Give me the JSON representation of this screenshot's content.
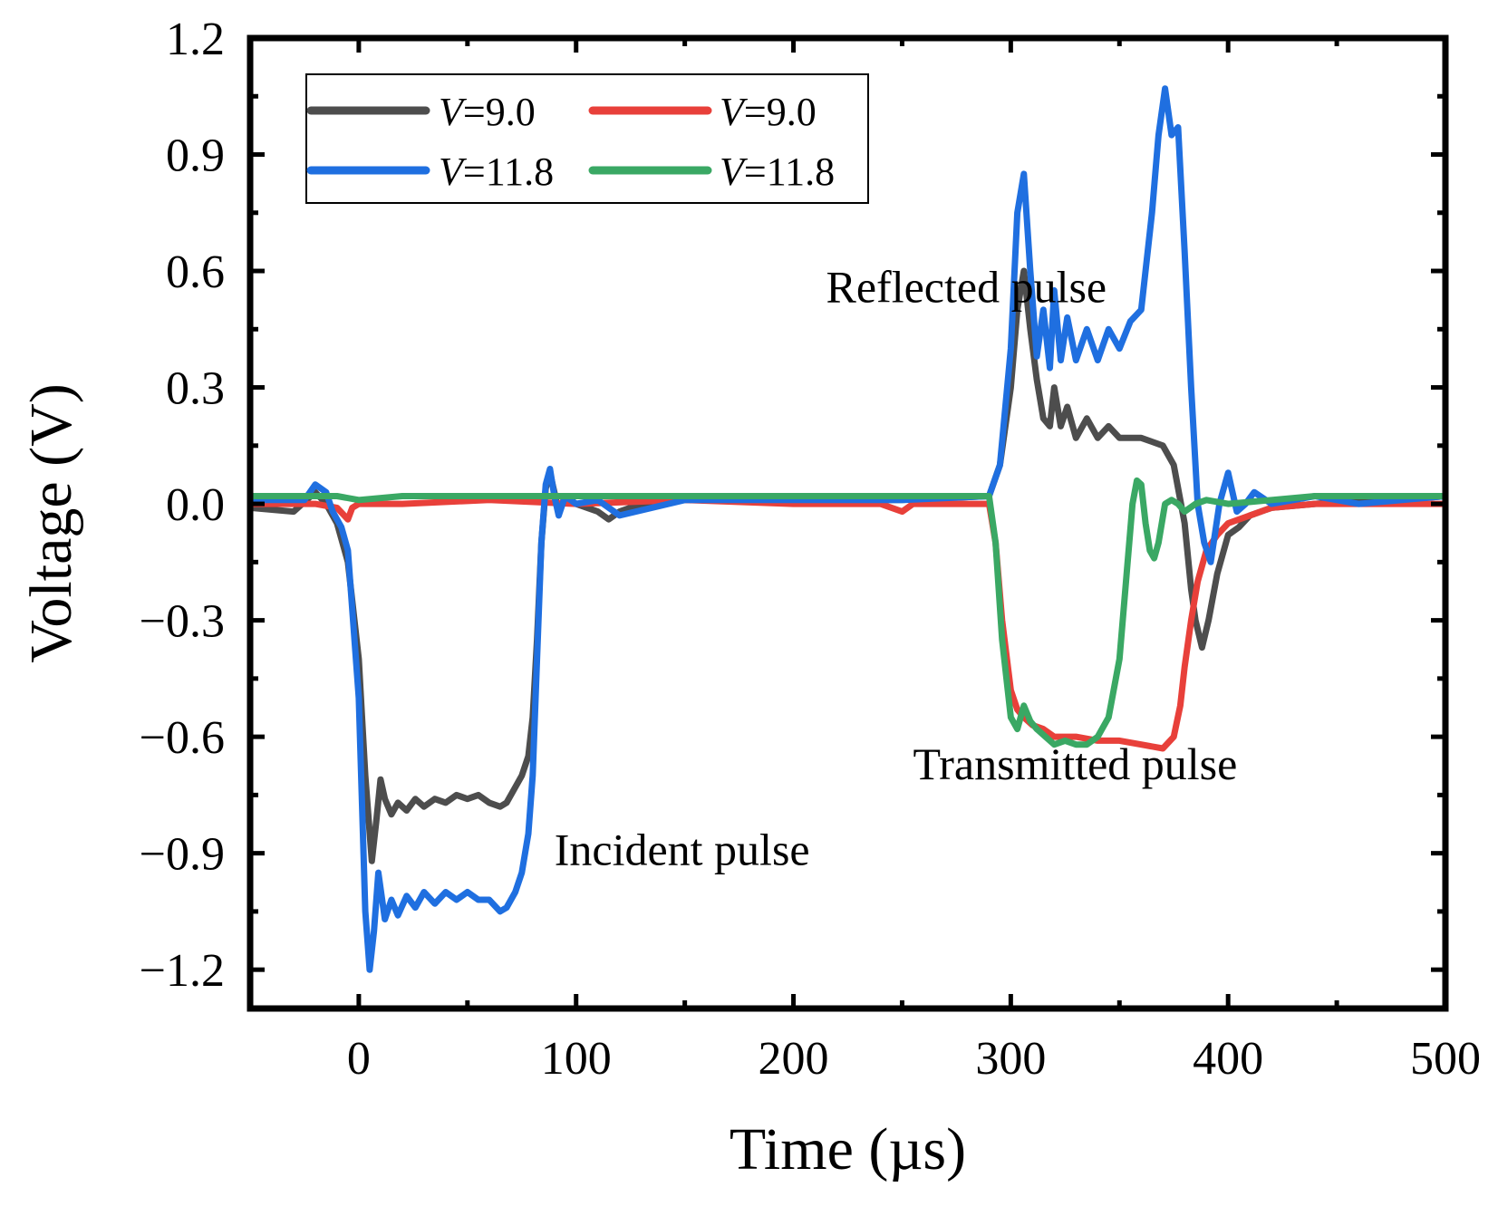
{
  "chart_data": {
    "type": "line",
    "title": "",
    "xlabel": "Time (µs)",
    "ylabel": "Voltage (V)",
    "xlim": [
      -50,
      500
    ],
    "ylim": [
      -1.3,
      1.2
    ],
    "xticks": [
      0,
      100,
      200,
      300,
      400,
      500
    ],
    "xtick_labels": [
      "0",
      "100",
      "200",
      "300",
      "400",
      "500"
    ],
    "yticks": [
      -1.2,
      -0.9,
      -0.6,
      -0.3,
      0.0,
      0.3,
      0.6,
      0.9,
      1.2
    ],
    "ytick_labels": [
      "−1.2",
      "−0.9",
      "−0.6",
      "−0.3",
      "0.0",
      "0.3",
      "0.6",
      "0.9",
      "1.2"
    ],
    "grid": false,
    "legend": {
      "placement": "top-left",
      "columns": 2,
      "italic_prefix": "V",
      "entries": [
        "=9.0",
        "=9.0",
        "=11.8",
        "=11.8"
      ]
    },
    "annotations": [
      {
        "text": "Reflected pulse",
        "x": 215,
        "y": 0.52
      },
      {
        "text": "Incident pulse",
        "x": 90,
        "y": -0.93
      },
      {
        "text": "Transmitted pulse",
        "x": 255,
        "y": -0.71
      }
    ],
    "series": [
      {
        "legend": "V=9.0",
        "color": "#4d4d4d",
        "x": [
          -50,
          -30,
          -20,
          -15,
          -10,
          -5,
          0,
          3,
          6,
          8,
          10,
          12,
          15,
          18,
          22,
          26,
          30,
          35,
          40,
          45,
          50,
          55,
          60,
          65,
          68,
          72,
          75,
          78,
          80,
          82,
          84,
          86,
          88,
          90,
          92,
          95,
          100,
          110,
          115,
          120,
          130,
          150,
          180,
          200,
          250,
          290,
          295,
          300,
          303,
          306,
          309,
          312,
          315,
          318,
          320,
          323,
          326,
          330,
          335,
          340,
          345,
          350,
          360,
          365,
          370,
          375,
          380,
          383,
          385,
          388,
          391,
          395,
          400,
          405,
          410,
          420,
          440,
          460,
          480,
          500
        ],
        "y": [
          -0.01,
          -0.02,
          0.03,
          0.0,
          -0.05,
          -0.15,
          -0.4,
          -0.7,
          -0.92,
          -0.82,
          -0.71,
          -0.76,
          -0.8,
          -0.77,
          -0.79,
          -0.76,
          -0.78,
          -0.76,
          -0.77,
          -0.75,
          -0.76,
          -0.75,
          -0.77,
          -0.78,
          -0.77,
          -0.73,
          -0.7,
          -0.65,
          -0.55,
          -0.35,
          -0.1,
          0.04,
          0.08,
          0.03,
          -0.02,
          0.02,
          0.0,
          -0.02,
          -0.04,
          -0.02,
          0.0,
          0.01,
          0.01,
          0.01,
          0.01,
          0.02,
          0.1,
          0.3,
          0.5,
          0.6,
          0.45,
          0.32,
          0.22,
          0.2,
          0.3,
          0.2,
          0.25,
          0.17,
          0.22,
          0.17,
          0.2,
          0.17,
          0.17,
          0.16,
          0.15,
          0.1,
          -0.05,
          -0.22,
          -0.3,
          -0.37,
          -0.3,
          -0.18,
          -0.08,
          -0.06,
          -0.03,
          -0.01,
          0.0,
          0.01,
          0.01,
          0.02
        ]
      },
      {
        "legend": "V=9.0",
        "color": "#e8403a",
        "x": [
          -50,
          -20,
          -10,
          -5,
          -3,
          0,
          20,
          60,
          100,
          150,
          200,
          240,
          250,
          255,
          270,
          290,
          293,
          296,
          300,
          303,
          306,
          310,
          315,
          320,
          330,
          340,
          350,
          360,
          370,
          375,
          378,
          380,
          383,
          386,
          390,
          395,
          400,
          410,
          420,
          440,
          460,
          480,
          500
        ],
        "y": [
          0.0,
          0.0,
          -0.01,
          -0.04,
          -0.01,
          0.0,
          0.0,
          0.01,
          0.0,
          0.01,
          0.0,
          0.0,
          -0.02,
          0.0,
          0.0,
          0.0,
          -0.1,
          -0.3,
          -0.48,
          -0.53,
          -0.55,
          -0.57,
          -0.58,
          -0.6,
          -0.6,
          -0.61,
          -0.61,
          -0.62,
          -0.63,
          -0.6,
          -0.52,
          -0.42,
          -0.3,
          -0.2,
          -0.12,
          -0.08,
          -0.05,
          -0.03,
          -0.01,
          0.0,
          0.0,
          0.0,
          0.0
        ]
      },
      {
        "legend": "V=11.8",
        "color": "#1f6fe0",
        "x": [
          -50,
          -25,
          -20,
          -15,
          -12,
          -8,
          -5,
          0,
          3,
          5,
          7,
          9,
          12,
          15,
          18,
          22,
          26,
          30,
          35,
          40,
          45,
          50,
          55,
          60,
          65,
          68,
          72,
          75,
          78,
          80,
          82,
          84,
          86,
          88,
          90,
          92,
          95,
          100,
          110,
          120,
          150,
          180,
          250,
          290,
          295,
          300,
          303,
          306,
          309,
          312,
          315,
          318,
          320,
          323,
          326,
          330,
          335,
          340,
          345,
          350,
          355,
          360,
          365,
          368,
          371,
          374,
          377,
          380,
          383,
          386,
          389,
          392,
          396,
          400,
          404,
          408,
          412,
          420,
          440,
          460,
          480,
          500
        ],
        "y": [
          0.01,
          0.01,
          0.05,
          0.03,
          -0.02,
          -0.06,
          -0.12,
          -0.5,
          -1.05,
          -1.2,
          -1.1,
          -0.95,
          -1.07,
          -1.02,
          -1.06,
          -1.01,
          -1.04,
          -1.0,
          -1.03,
          -1.0,
          -1.02,
          -1.0,
          -1.02,
          -1.02,
          -1.05,
          -1.04,
          -1.0,
          -0.95,
          -0.85,
          -0.7,
          -0.4,
          -0.1,
          0.05,
          0.09,
          0.02,
          -0.03,
          0.02,
          0.0,
          0.01,
          -0.03,
          0.01,
          0.01,
          0.01,
          0.02,
          0.1,
          0.4,
          0.75,
          0.85,
          0.6,
          0.38,
          0.5,
          0.35,
          0.55,
          0.37,
          0.48,
          0.37,
          0.45,
          0.37,
          0.45,
          0.4,
          0.47,
          0.5,
          0.75,
          0.95,
          1.07,
          0.95,
          0.97,
          0.65,
          0.3,
          0.0,
          -0.1,
          -0.15,
          0.0,
          0.08,
          -0.02,
          0.0,
          0.03,
          0.0,
          0.02,
          0.0,
          0.01,
          0.02
        ]
      },
      {
        "legend": "V=11.8",
        "color": "#3aa864",
        "x": [
          -50,
          -30,
          -10,
          0,
          20,
          60,
          100,
          150,
          200,
          250,
          290,
          293,
          296,
          300,
          303,
          306,
          309,
          312,
          316,
          320,
          325,
          330,
          335,
          340,
          345,
          350,
          353,
          356,
          358,
          360,
          362,
          364,
          366,
          368,
          371,
          374,
          377,
          380,
          385,
          390,
          400,
          420,
          440,
          460,
          480,
          500
        ],
        "y": [
          0.02,
          0.02,
          0.02,
          0.01,
          0.02,
          0.02,
          0.02,
          0.02,
          0.02,
          0.02,
          0.02,
          -0.1,
          -0.35,
          -0.55,
          -0.58,
          -0.52,
          -0.56,
          -0.58,
          -0.6,
          -0.62,
          -0.61,
          -0.62,
          -0.62,
          -0.6,
          -0.55,
          -0.4,
          -0.2,
          0.0,
          0.06,
          0.05,
          -0.05,
          -0.12,
          -0.14,
          -0.1,
          0.0,
          0.01,
          0.0,
          -0.02,
          0.0,
          0.01,
          0.0,
          0.01,
          0.02,
          0.02,
          0.02,
          0.02
        ]
      }
    ]
  }
}
